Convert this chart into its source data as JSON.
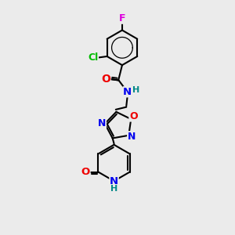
{
  "bg_color": "#ebebeb",
  "bond_color": "#000000",
  "bond_width": 1.5,
  "atom_colors": {
    "N": "#0000ee",
    "O": "#ee0000",
    "Cl": "#00bb00",
    "F": "#dd00dd",
    "H": "#008888"
  },
  "font_size": 9,
  "fig_width": 3.0,
  "fig_height": 3.0,
  "dpi": 100
}
